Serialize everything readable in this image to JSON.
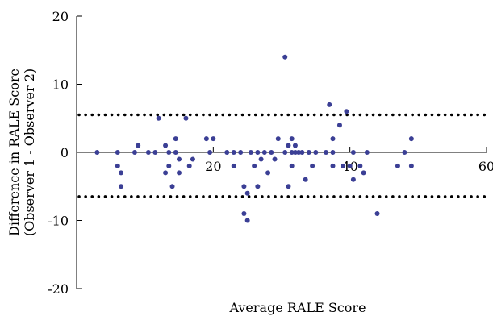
{
  "chart_data": {
    "type": "scatter",
    "title": "",
    "xlabel": "Average RALE Score",
    "ylabel_line1": "Difference in RALE Score",
    "ylabel_line2": "(Observer 1 - Observer 2)",
    "xlim": [
      0,
      60
    ],
    "ylim": [
      -20,
      20
    ],
    "x_ticks": [
      20,
      40,
      60
    ],
    "y_ticks": [
      20,
      10,
      0,
      -10,
      -20
    ],
    "x_tick_labels": [
      "20",
      "40",
      "60"
    ],
    "y_tick_labels": [
      "20",
      "10",
      "0",
      "-10",
      "-20"
    ],
    "limits_of_agreement": [
      5.5,
      -6.5
    ],
    "grid": false,
    "point_color": "#3b3f95",
    "points": [
      [
        3,
        0
      ],
      [
        6,
        0
      ],
      [
        6,
        -2
      ],
      [
        6.5,
        -3
      ],
      [
        6.5,
        -5
      ],
      [
        8.5,
        0
      ],
      [
        9,
        1
      ],
      [
        10.5,
        0
      ],
      [
        11.5,
        0
      ],
      [
        12,
        5
      ],
      [
        13,
        -3
      ],
      [
        13,
        1
      ],
      [
        13.5,
        0
      ],
      [
        13.5,
        -2
      ],
      [
        14,
        -5
      ],
      [
        14.5,
        0
      ],
      [
        14.5,
        2
      ],
      [
        15,
        -1
      ],
      [
        15,
        -3
      ],
      [
        16,
        5
      ],
      [
        16.5,
        -2
      ],
      [
        17,
        -1
      ],
      [
        19,
        2
      ],
      [
        19.5,
        0
      ],
      [
        20,
        2
      ],
      [
        22,
        0
      ],
      [
        23,
        -2
      ],
      [
        23,
        0
      ],
      [
        24,
        0
      ],
      [
        24.5,
        -5
      ],
      [
        24.5,
        -9
      ],
      [
        25,
        -6
      ],
      [
        25,
        -10
      ],
      [
        25.5,
        0
      ],
      [
        26,
        -2
      ],
      [
        26.5,
        0
      ],
      [
        26.5,
        -5
      ],
      [
        27,
        -1
      ],
      [
        27.5,
        0
      ],
      [
        28,
        -3
      ],
      [
        28.5,
        0
      ],
      [
        29,
        -1
      ],
      [
        29.5,
        2
      ],
      [
        30.5,
        14
      ],
      [
        30.5,
        0
      ],
      [
        31,
        1
      ],
      [
        31,
        -5
      ],
      [
        31.5,
        0
      ],
      [
        31.5,
        -2
      ],
      [
        31.5,
        2
      ],
      [
        32,
        1
      ],
      [
        32,
        0
      ],
      [
        32.5,
        0
      ],
      [
        33,
        0
      ],
      [
        33.5,
        -4
      ],
      [
        34,
        0
      ],
      [
        34.5,
        -2
      ],
      [
        35,
        0
      ],
      [
        36.5,
        0
      ],
      [
        37,
        7
      ],
      [
        37.5,
        0
      ],
      [
        37.5,
        2
      ],
      [
        37.5,
        -2
      ],
      [
        38.5,
        4
      ],
      [
        39,
        -2
      ],
      [
        39.5,
        6
      ],
      [
        40,
        -2
      ],
      [
        40.5,
        0
      ],
      [
        40.5,
        -4
      ],
      [
        41.5,
        -2
      ],
      [
        42,
        -3
      ],
      [
        42.5,
        0
      ],
      [
        44,
        -9
      ],
      [
        47,
        -2
      ],
      [
        48,
        0
      ],
      [
        49,
        2
      ],
      [
        49,
        -2
      ]
    ]
  }
}
